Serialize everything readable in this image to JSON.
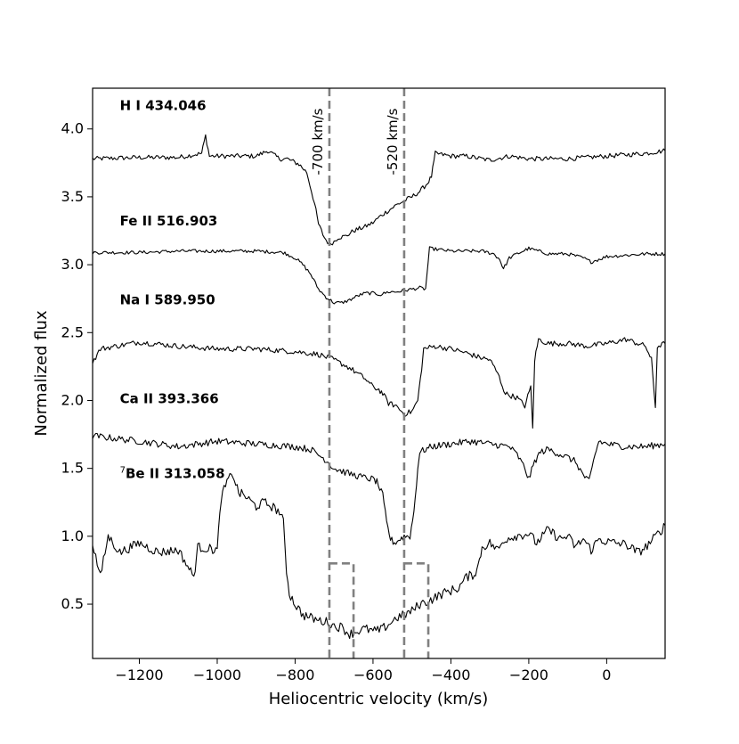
{
  "chart_data": {
    "type": "line",
    "xlabel": "Heliocentric velocity (km/s)",
    "ylabel": "Normalized flux",
    "xlim": [
      -1320,
      150
    ],
    "ylim": [
      0.1,
      4.3
    ],
    "x_ticks": [
      -1200,
      -1000,
      -800,
      -600,
      -400,
      -200,
      0
    ],
    "x_tick_labels": [
      "−1200",
      "−1000",
      "−800",
      "−600",
      "−400",
      "−200",
      "0"
    ],
    "y_ticks": [
      0.5,
      1.0,
      1.5,
      2.0,
      2.5,
      3.0,
      3.5,
      4.0
    ],
    "y_tick_labels": [
      "0.5",
      "1.0",
      "1.5",
      "2.0",
      "2.5",
      "3.0",
      "3.5",
      "4.0"
    ],
    "grid": false,
    "line_color": "#000000",
    "marker_color": "#808080",
    "series": [
      {
        "name": "H I 434.046",
        "label_x": -1250,
        "label_y": 4.14,
        "points": [
          [
            -1320,
            3.78
          ],
          [
            -1200,
            3.79
          ],
          [
            -1100,
            3.79
          ],
          [
            -1040,
            3.82
          ],
          [
            -1030,
            3.95
          ],
          [
            -1020,
            3.8
          ],
          [
            -900,
            3.8
          ],
          [
            -870,
            3.84
          ],
          [
            -840,
            3.78
          ],
          [
            -820,
            3.78
          ],
          [
            -790,
            3.74
          ],
          [
            -770,
            3.68
          ],
          [
            -750,
            3.45
          ],
          [
            -740,
            3.3
          ],
          [
            -725,
            3.2
          ],
          [
            -712,
            3.15
          ],
          [
            -700,
            3.17
          ],
          [
            -690,
            3.2
          ],
          [
            -670,
            3.21
          ],
          [
            -650,
            3.25
          ],
          [
            -620,
            3.28
          ],
          [
            -600,
            3.31
          ],
          [
            -580,
            3.36
          ],
          [
            -560,
            3.4
          ],
          [
            -540,
            3.44
          ],
          [
            -520,
            3.47
          ],
          [
            -500,
            3.5
          ],
          [
            -480,
            3.54
          ],
          [
            -460,
            3.6
          ],
          [
            -450,
            3.65
          ],
          [
            -440,
            3.82
          ],
          [
            -400,
            3.8
          ],
          [
            -360,
            3.8
          ],
          [
            -300,
            3.77
          ],
          [
            -250,
            3.8
          ],
          [
            -200,
            3.78
          ],
          [
            -100,
            3.78
          ],
          [
            0,
            3.8
          ],
          [
            100,
            3.82
          ],
          [
            150,
            3.84
          ]
        ]
      },
      {
        "name": "Fe II 516.903",
        "label_x": -1250,
        "label_y": 3.29,
        "points": [
          [
            -1320,
            3.09
          ],
          [
            -1200,
            3.09
          ],
          [
            -1100,
            3.1
          ],
          [
            -1000,
            3.1
          ],
          [
            -900,
            3.1
          ],
          [
            -830,
            3.09
          ],
          [
            -800,
            3.05
          ],
          [
            -780,
            3.0
          ],
          [
            -760,
            2.93
          ],
          [
            -740,
            2.82
          ],
          [
            -720,
            2.76
          ],
          [
            -700,
            2.72
          ],
          [
            -680,
            2.72
          ],
          [
            -660,
            2.74
          ],
          [
            -640,
            2.77
          ],
          [
            -620,
            2.79
          ],
          [
            -600,
            2.79
          ],
          [
            -580,
            2.78
          ],
          [
            -560,
            2.8
          ],
          [
            -540,
            2.8
          ],
          [
            -520,
            2.81
          ],
          [
            -500,
            2.82
          ],
          [
            -480,
            2.83
          ],
          [
            -465,
            2.82
          ],
          [
            -455,
            3.12
          ],
          [
            -400,
            3.1
          ],
          [
            -320,
            3.1
          ],
          [
            -290,
            3.08
          ],
          [
            -275,
            3.04
          ],
          [
            -265,
            2.97
          ],
          [
            -250,
            3.05
          ],
          [
            -230,
            3.08
          ],
          [
            -200,
            3.12
          ],
          [
            -150,
            3.08
          ],
          [
            -100,
            3.08
          ],
          [
            -60,
            3.05
          ],
          [
            -40,
            3.02
          ],
          [
            0,
            3.06
          ],
          [
            100,
            3.08
          ],
          [
            150,
            3.08
          ]
        ]
      },
      {
        "name": "Na I 589.950",
        "label_x": -1250,
        "label_y": 2.71,
        "points": [
          [
            -1320,
            2.28
          ],
          [
            -1300,
            2.38
          ],
          [
            -1200,
            2.43
          ],
          [
            -1100,
            2.4
          ],
          [
            -1000,
            2.38
          ],
          [
            -900,
            2.38
          ],
          [
            -800,
            2.36
          ],
          [
            -740,
            2.34
          ],
          [
            -700,
            2.3
          ],
          [
            -660,
            2.24
          ],
          [
            -620,
            2.16
          ],
          [
            -600,
            2.1
          ],
          [
            -585,
            2.08
          ],
          [
            -575,
            2.05
          ],
          [
            -560,
            1.98
          ],
          [
            -540,
            1.96
          ],
          [
            -520,
            1.9
          ],
          [
            -500,
            1.92
          ],
          [
            -485,
            2.0
          ],
          [
            -475,
            2.24
          ],
          [
            -470,
            2.38
          ],
          [
            -440,
            2.4
          ],
          [
            -400,
            2.38
          ],
          [
            -360,
            2.35
          ],
          [
            -330,
            2.32
          ],
          [
            -300,
            2.3
          ],
          [
            -280,
            2.2
          ],
          [
            -260,
            2.05
          ],
          [
            -230,
            2.02
          ],
          [
            -210,
            1.96
          ],
          [
            -195,
            2.1
          ],
          [
            -190,
            1.8
          ],
          [
            -185,
            2.3
          ],
          [
            -175,
            2.45
          ],
          [
            -150,
            2.42
          ],
          [
            -100,
            2.42
          ],
          [
            -50,
            2.4
          ],
          [
            0,
            2.42
          ],
          [
            50,
            2.45
          ],
          [
            100,
            2.4
          ],
          [
            115,
            2.3
          ],
          [
            125,
            1.95
          ],
          [
            130,
            2.4
          ],
          [
            150,
            2.42
          ]
        ]
      },
      {
        "name": "Ca II 393.366",
        "label_x": -1250,
        "label_y": 1.98,
        "points": [
          [
            -1320,
            1.74
          ],
          [
            -1200,
            1.7
          ],
          [
            -1100,
            1.66
          ],
          [
            -1000,
            1.7
          ],
          [
            -900,
            1.68
          ],
          [
            -800,
            1.66
          ],
          [
            -760,
            1.64
          ],
          [
            -720,
            1.56
          ],
          [
            -700,
            1.5
          ],
          [
            -660,
            1.46
          ],
          [
            -620,
            1.43
          ],
          [
            -600,
            1.42
          ],
          [
            -590,
            1.4
          ],
          [
            -575,
            1.3
          ],
          [
            -565,
            1.1
          ],
          [
            -555,
            0.98
          ],
          [
            -545,
            0.95
          ],
          [
            -530,
            0.98
          ],
          [
            -520,
            1.0
          ],
          [
            -505,
            1.0
          ],
          [
            -495,
            1.18
          ],
          [
            -485,
            1.5
          ],
          [
            -480,
            1.62
          ],
          [
            -450,
            1.66
          ],
          [
            -400,
            1.68
          ],
          [
            -350,
            1.7
          ],
          [
            -300,
            1.68
          ],
          [
            -250,
            1.66
          ],
          [
            -230,
            1.6
          ],
          [
            -210,
            1.5
          ],
          [
            -200,
            1.42
          ],
          [
            -185,
            1.55
          ],
          [
            -170,
            1.62
          ],
          [
            -150,
            1.64
          ],
          [
            -100,
            1.58
          ],
          [
            -80,
            1.55
          ],
          [
            -60,
            1.45
          ],
          [
            -45,
            1.4
          ],
          [
            -30,
            1.6
          ],
          [
            -20,
            1.7
          ],
          [
            0,
            1.68
          ],
          [
            50,
            1.66
          ],
          [
            100,
            1.66
          ],
          [
            150,
            1.68
          ]
        ]
      },
      {
        "name": "Be II 313.058",
        "prefix": "7",
        "label_x": -1250,
        "label_y": 1.43,
        "points": [
          [
            -1320,
            0.95
          ],
          [
            -1300,
            0.7
          ],
          [
            -1280,
            1.0
          ],
          [
            -1250,
            0.88
          ],
          [
            -1200,
            0.95
          ],
          [
            -1150,
            0.88
          ],
          [
            -1100,
            0.9
          ],
          [
            -1060,
            0.7
          ],
          [
            -1050,
            0.92
          ],
          [
            -1000,
            0.9
          ],
          [
            -990,
            1.28
          ],
          [
            -975,
            1.4
          ],
          [
            -960,
            1.46
          ],
          [
            -945,
            1.32
          ],
          [
            -930,
            1.3
          ],
          [
            -900,
            1.22
          ],
          [
            -880,
            1.25
          ],
          [
            -860,
            1.22
          ],
          [
            -840,
            1.18
          ],
          [
            -830,
            1.1
          ],
          [
            -822,
            0.75
          ],
          [
            -815,
            0.58
          ],
          [
            -800,
            0.5
          ],
          [
            -780,
            0.42
          ],
          [
            -760,
            0.4
          ],
          [
            -740,
            0.38
          ],
          [
            -720,
            0.37
          ],
          [
            -700,
            0.34
          ],
          [
            -680,
            0.33
          ],
          [
            -660,
            0.28
          ],
          [
            -640,
            0.3
          ],
          [
            -620,
            0.32
          ],
          [
            -600,
            0.3
          ],
          [
            -580,
            0.31
          ],
          [
            -560,
            0.35
          ],
          [
            -540,
            0.4
          ],
          [
            -520,
            0.42
          ],
          [
            -500,
            0.45
          ],
          [
            -480,
            0.5
          ],
          [
            -460,
            0.52
          ],
          [
            -440,
            0.55
          ],
          [
            -420,
            0.58
          ],
          [
            -400,
            0.6
          ],
          [
            -380,
            0.62
          ],
          [
            -360,
            0.7
          ],
          [
            -340,
            0.72
          ],
          [
            -330,
            0.78
          ],
          [
            -320,
            0.92
          ],
          [
            -300,
            0.95
          ],
          [
            -280,
            0.9
          ],
          [
            -260,
            0.98
          ],
          [
            -240,
            1.0
          ],
          [
            -200,
            1.02
          ],
          [
            -180,
            0.95
          ],
          [
            -150,
            1.05
          ],
          [
            -120,
            0.98
          ],
          [
            -100,
            1.0
          ],
          [
            -80,
            0.92
          ],
          [
            -60,
            0.98
          ],
          [
            -40,
            0.9
          ],
          [
            -20,
            0.98
          ],
          [
            0,
            0.96
          ],
          [
            50,
            0.94
          ],
          [
            80,
            0.88
          ],
          [
            100,
            0.92
          ],
          [
            120,
            0.98
          ],
          [
            150,
            1.08
          ]
        ]
      }
    ],
    "markers": [
      {
        "label": "-700 km/s",
        "x": -712
      },
      {
        "label": "-520 km/s",
        "x": -520
      }
    ],
    "bracket_steps": [
      {
        "x_outer": -712,
        "x_inner": -650,
        "y_top": 0.8,
        "y_bottom": 0.1
      },
      {
        "x_outer": -520,
        "x_inner": -458,
        "y_top": 0.8,
        "y_bottom": 0.1
      }
    ]
  }
}
